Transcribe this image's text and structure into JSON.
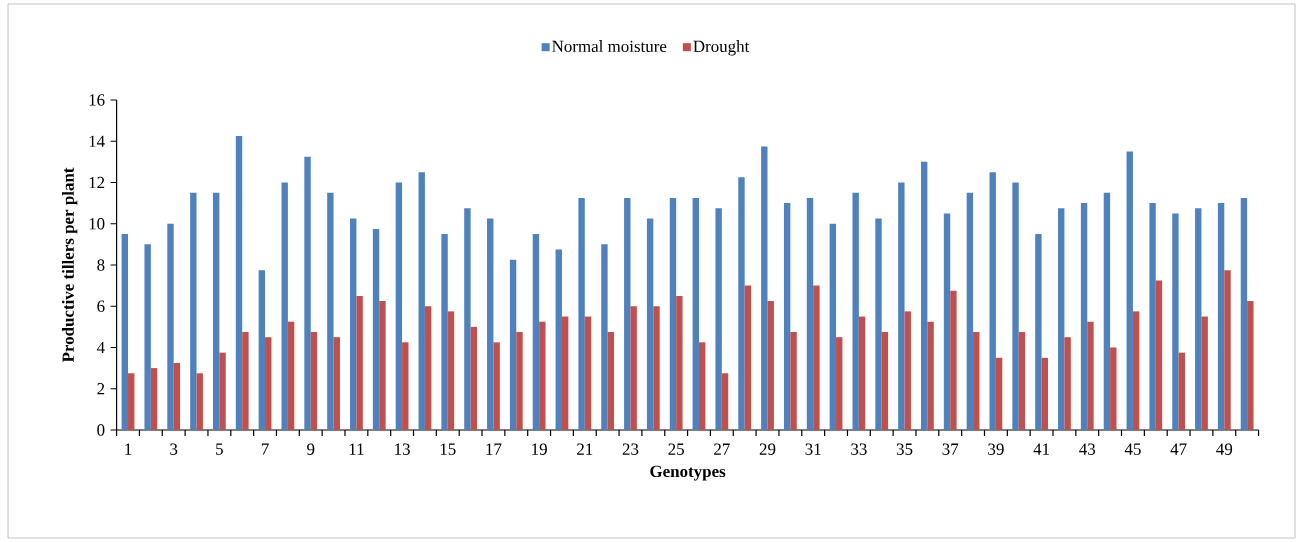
{
  "chart_data": {
    "type": "bar",
    "xlabel": "Genotypes",
    "ylabel": "Productive tillers per plant",
    "categories": [
      "1",
      null,
      "3",
      null,
      "5",
      null,
      "7",
      null,
      "9",
      null,
      "11",
      null,
      "13",
      null,
      "15",
      null,
      "17",
      null,
      "19",
      null,
      "21",
      null,
      "23",
      null,
      "25",
      null,
      "27",
      null,
      "29",
      null,
      "31",
      null,
      "33",
      null,
      "35",
      null,
      "37",
      null,
      "39",
      null,
      "41",
      null,
      "43",
      null,
      "45",
      null,
      "47",
      null,
      "49",
      null
    ],
    "series": [
      {
        "name": "Normal moisture",
        "color": "#4f81bd",
        "values": [
          9.5,
          9,
          10,
          11.5,
          11.5,
          14.25,
          7.75,
          12,
          13.25,
          11.5,
          10.25,
          9.75,
          12,
          12.5,
          9.5,
          10.75,
          10.25,
          8.25,
          9.5,
          8.75,
          11.25,
          9,
          11.25,
          10.25,
          11.25,
          11.25,
          10.75,
          12.25,
          13.75,
          11,
          11.25,
          10,
          11.5,
          10.25,
          12,
          13,
          10.5,
          11.5,
          12.5,
          12,
          9.5,
          10.75,
          11,
          11.5,
          13.5,
          11,
          10.5,
          10.75,
          11,
          11.25
        ]
      },
      {
        "name": "Drought",
        "color": "#c0504d",
        "values": [
          2.75,
          3,
          3.25,
          2.75,
          3.75,
          4.75,
          4.5,
          5.25,
          4.75,
          4.5,
          6.5,
          6.25,
          4.25,
          6,
          5.75,
          5,
          4.25,
          4.75,
          5.25,
          5.5,
          5.5,
          4.75,
          6,
          6,
          6.5,
          4.25,
          2.75,
          7,
          6.25,
          4.75,
          7,
          4.5,
          5.5,
          4.75,
          5.75,
          5.25,
          6.75,
          4.75,
          3.5,
          4.75,
          3.5,
          4.5,
          5.25,
          4,
          5.75,
          7.25,
          3.75,
          5.5,
          7.75,
          6.25
        ]
      }
    ],
    "ylim": [
      0,
      16
    ],
    "yticks": [
      0,
      2,
      4,
      6,
      8,
      10,
      12,
      14,
      16
    ],
    "legend": "top"
  }
}
